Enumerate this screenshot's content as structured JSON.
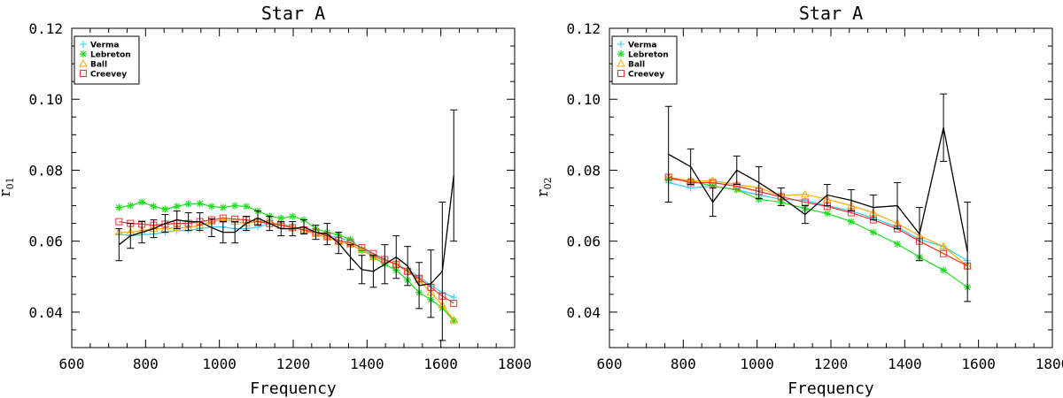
{
  "chart_data": [
    {
      "type": "line",
      "title": "Star A",
      "xlabel": "Frequency",
      "ylabel_main": "r",
      "ylabel_sub": "01",
      "xlim": [
        600,
        1800
      ],
      "ylim": [
        0.03,
        0.12
      ],
      "xticks": [
        600,
        800,
        1000,
        1200,
        1400,
        1600,
        1800
      ],
      "yticks": [
        0.04,
        0.06,
        0.08,
        0.1,
        0.12
      ],
      "ytick_labels": [
        "0.04",
        "0.06",
        "0.08",
        "0.10",
        "0.12"
      ],
      "legend_position": "top-left",
      "grid": false,
      "series": [
        {
          "name": "Verma",
          "color": "#33ccff",
          "marker": "plus",
          "x": [
            728,
            759,
            790,
            822,
            853,
            885,
            916,
            947,
            979,
            1010,
            1042,
            1073,
            1104,
            1136,
            1167,
            1198,
            1229,
            1261,
            1292,
            1323,
            1355,
            1386,
            1417,
            1448,
            1479,
            1510,
            1541,
            1573,
            1604,
            1635
          ],
          "y": [
            0.062,
            0.0615,
            0.0618,
            0.062,
            0.0625,
            0.063,
            0.063,
            0.0635,
            0.064,
            0.064,
            0.0635,
            0.0635,
            0.064,
            0.065,
            0.065,
            0.064,
            0.063,
            0.0625,
            0.0615,
            0.061,
            0.06,
            0.058,
            0.056,
            0.0545,
            0.0535,
            0.052,
            0.05,
            0.0475,
            0.0455,
            0.0442
          ]
        },
        {
          "name": "Lebreton",
          "color": "#22dd22",
          "marker": "asterisk",
          "x": [
            728,
            759,
            790,
            822,
            853,
            885,
            916,
            947,
            979,
            1010,
            1042,
            1073,
            1104,
            1136,
            1167,
            1198,
            1229,
            1261,
            1292,
            1323,
            1355,
            1386,
            1417,
            1448,
            1479,
            1510,
            1541,
            1573,
            1604,
            1635
          ],
          "y": [
            0.0695,
            0.07,
            0.071,
            0.0698,
            0.069,
            0.0698,
            0.0705,
            0.0706,
            0.0698,
            0.0695,
            0.07,
            0.0698,
            0.0685,
            0.067,
            0.0665,
            0.067,
            0.066,
            0.0635,
            0.0625,
            0.0618,
            0.0605,
            0.0575,
            0.0555,
            0.0535,
            0.0518,
            0.049,
            0.0455,
            0.0435,
            0.0412,
            0.0375
          ]
        },
        {
          "name": "Ball",
          "color": "#ffaa00",
          "marker": "triangle",
          "x": [
            728,
            759,
            790,
            822,
            853,
            885,
            916,
            947,
            979,
            1010,
            1042,
            1073,
            1104,
            1136,
            1167,
            1198,
            1229,
            1261,
            1292,
            1323,
            1355,
            1386,
            1417,
            1448,
            1479,
            1510,
            1541,
            1573,
            1604,
            1635
          ],
          "y": [
            0.0625,
            0.0625,
            0.063,
            0.0635,
            0.0635,
            0.0638,
            0.0638,
            0.0645,
            0.0655,
            0.066,
            0.0655,
            0.065,
            0.0655,
            0.0655,
            0.0645,
            0.064,
            0.063,
            0.062,
            0.061,
            0.0598,
            0.059,
            0.0575,
            0.0555,
            0.0545,
            0.0535,
            0.0515,
            0.049,
            0.0455,
            0.042,
            0.0378
          ]
        },
        {
          "name": "Creevey",
          "color": "#ee3333",
          "marker": "square",
          "x": [
            728,
            759,
            790,
            822,
            853,
            885,
            916,
            947,
            979,
            1010,
            1042,
            1073,
            1104,
            1136,
            1167,
            1198,
            1229,
            1261,
            1292,
            1323,
            1355,
            1386,
            1417,
            1448,
            1479,
            1510,
            1541,
            1573,
            1604,
            1635
          ],
          "y": [
            0.0655,
            0.065,
            0.0648,
            0.0645,
            0.0648,
            0.065,
            0.065,
            0.0655,
            0.066,
            0.0665,
            0.0662,
            0.066,
            0.0655,
            0.065,
            0.0645,
            0.0638,
            0.0632,
            0.0625,
            0.0615,
            0.0602,
            0.0595,
            0.0582,
            0.0565,
            0.0548,
            0.0535,
            0.0515,
            0.0495,
            0.047,
            0.0445,
            0.0425
          ]
        },
        {
          "name": "",
          "color": "#000000",
          "marker": "none",
          "x": [
            728,
            759,
            790,
            822,
            853,
            885,
            916,
            947,
            979,
            1010,
            1042,
            1073,
            1104,
            1136,
            1167,
            1198,
            1229,
            1261,
            1292,
            1323,
            1355,
            1386,
            1417,
            1448,
            1479,
            1510,
            1541,
            1573,
            1604,
            1635
          ],
          "y": [
            0.059,
            0.0615,
            0.0625,
            0.0635,
            0.065,
            0.066,
            0.0655,
            0.0655,
            0.0638,
            0.0625,
            0.0625,
            0.065,
            0.0665,
            0.065,
            0.0635,
            0.0635,
            0.064,
            0.0625,
            0.062,
            0.0595,
            0.0555,
            0.052,
            0.0515,
            0.0535,
            0.0555,
            0.053,
            0.0475,
            0.048,
            0.0515,
            0.0785
          ],
          "err": [
            0.0045,
            0.0035,
            0.003,
            0.0025,
            0.0025,
            0.0025,
            0.0025,
            0.0025,
            0.0025,
            0.003,
            0.003,
            0.002,
            0.002,
            0.002,
            0.002,
            0.002,
            0.002,
            0.002,
            0.003,
            0.003,
            0.0035,
            0.004,
            0.0045,
            0.0055,
            0.006,
            0.0055,
            0.0065,
            0.0095,
            0.0195,
            0.0185
          ]
        }
      ]
    },
    {
      "type": "line",
      "title": "Star A",
      "xlabel": "Frequency",
      "ylabel_main": "r",
      "ylabel_sub": "02",
      "xlim": [
        600,
        1800
      ],
      "ylim": [
        0.03,
        0.12
      ],
      "xticks": [
        600,
        800,
        1000,
        1200,
        1400,
        1600,
        1800
      ],
      "yticks": [
        0.04,
        0.06,
        0.08,
        0.1,
        0.12
      ],
      "ytick_labels": [
        "0.04",
        "0.06",
        "0.08",
        "0.10",
        "0.12"
      ],
      "legend_position": "top-left",
      "grid": false,
      "series": [
        {
          "name": "Verma",
          "color": "#33ccff",
          "marker": "plus",
          "x": [
            760,
            820,
            880,
            945,
            1005,
            1065,
            1130,
            1190,
            1255,
            1315,
            1380,
            1440,
            1505,
            1570
          ],
          "y": [
            0.0765,
            0.075,
            0.0755,
            0.0745,
            0.073,
            0.0718,
            0.0715,
            0.07,
            0.0685,
            0.0665,
            0.064,
            0.0605,
            0.0585,
            0.0545
          ]
        },
        {
          "name": "Lebreton",
          "color": "#22dd22",
          "marker": "asterisk",
          "x": [
            760,
            820,
            880,
            945,
            1005,
            1065,
            1130,
            1190,
            1255,
            1315,
            1380,
            1440,
            1505,
            1570
          ],
          "y": [
            0.0775,
            0.077,
            0.0755,
            0.0745,
            0.0718,
            0.071,
            0.0692,
            0.0678,
            0.0655,
            0.0625,
            0.0592,
            0.0555,
            0.0518,
            0.047
          ]
        },
        {
          "name": "Ball",
          "color": "#ffaa00",
          "marker": "triangle",
          "x": [
            760,
            820,
            880,
            945,
            1005,
            1065,
            1130,
            1190,
            1255,
            1315,
            1380,
            1440,
            1505,
            1570
          ],
          "y": [
            0.078,
            0.077,
            0.077,
            0.076,
            0.075,
            0.0728,
            0.0732,
            0.0718,
            0.07,
            0.068,
            0.065,
            0.0615,
            0.0585,
            0.053
          ]
        },
        {
          "name": "Creevey",
          "color": "#ee3333",
          "marker": "square",
          "x": [
            760,
            820,
            880,
            945,
            1005,
            1065,
            1130,
            1190,
            1255,
            1315,
            1380,
            1440,
            1505,
            1570
          ],
          "y": [
            0.078,
            0.0765,
            0.0765,
            0.0755,
            0.074,
            0.0725,
            0.071,
            0.0698,
            0.068,
            0.066,
            0.0635,
            0.06,
            0.0565,
            0.053
          ]
        },
        {
          "name": "",
          "color": "#000000",
          "marker": "none",
          "x": [
            760,
            820,
            880,
            945,
            1005,
            1065,
            1130,
            1190,
            1255,
            1315,
            1380,
            1440,
            1505,
            1570
          ],
          "y": [
            0.0845,
            0.081,
            0.071,
            0.08,
            0.0765,
            0.0725,
            0.0675,
            0.073,
            0.0715,
            0.0695,
            0.07,
            0.062,
            0.092,
            0.057
          ],
          "err": [
            0.0135,
            0.005,
            0.004,
            0.004,
            0.0045,
            0.0025,
            0.0025,
            0.003,
            0.003,
            0.0035,
            0.0065,
            0.0075,
            0.0095,
            0.014
          ]
        }
      ]
    }
  ]
}
